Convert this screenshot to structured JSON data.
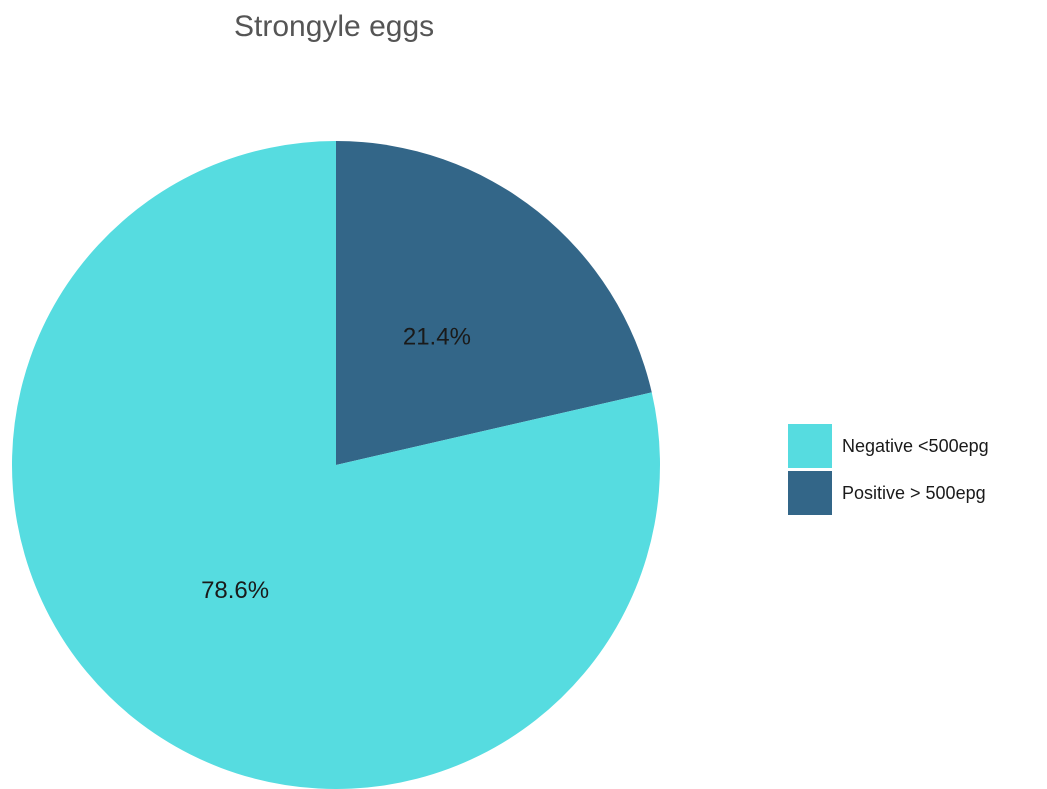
{
  "chart_data": {
    "type": "pie",
    "title": "Strongyle eggs",
    "slices": [
      {
        "name": "Positive > 500epg",
        "value": 21.4,
        "label": "21.4%",
        "color": "#336688"
      },
      {
        "name": "Negative <500epg",
        "value": 78.6,
        "label": "78.6%",
        "color": "#56dce0"
      }
    ],
    "start_angle_deg": 0,
    "direction": "clockwise",
    "legend": {
      "position": "right",
      "entries": [
        {
          "label": "Negative <500epg",
          "color": "#56dce0"
        },
        {
          "label": "Positive > 500epg",
          "color": "#336688"
        }
      ]
    }
  }
}
